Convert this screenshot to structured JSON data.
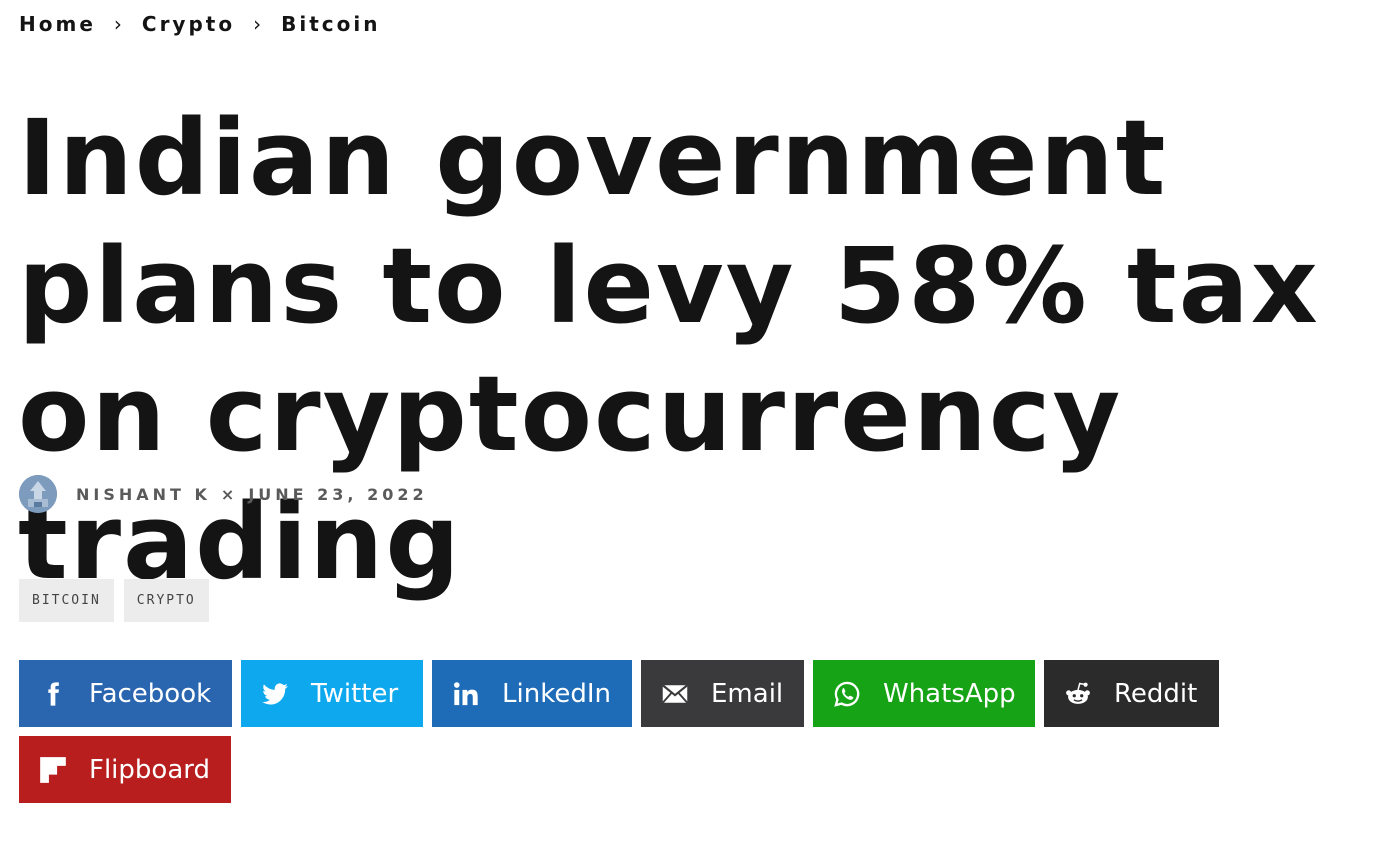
{
  "breadcrumb": {
    "items": [
      "Home",
      "Crypto",
      "Bitcoin"
    ],
    "separator": "›"
  },
  "article": {
    "title": "Indian government plans to levy 58% tax on cryptocurrency trading",
    "author": "NISHANT K",
    "separator": "×",
    "date": "JUNE 23, 2022",
    "avatar_icon": "author-avatar"
  },
  "tags": [
    "BITCOIN",
    "CRYPTO"
  ],
  "share": {
    "buttons": [
      {
        "label": "Facebook",
        "icon": "facebook-icon",
        "color": "#2a66b0"
      },
      {
        "label": "Twitter",
        "icon": "twitter-icon",
        "color": "#0ea8ee"
      },
      {
        "label": "LinkedIn",
        "icon": "linkedin-icon",
        "color": "#1e6cb8"
      },
      {
        "label": "Email",
        "icon": "email-icon",
        "color": "#3a3a3c"
      },
      {
        "label": "WhatsApp",
        "icon": "whatsapp-icon",
        "color": "#17a316"
      },
      {
        "label": "Reddit",
        "icon": "reddit-icon",
        "color": "#2b2b2b"
      },
      {
        "label": "Flipboard",
        "icon": "flipboard-icon",
        "color": "#b81e1e"
      }
    ]
  }
}
